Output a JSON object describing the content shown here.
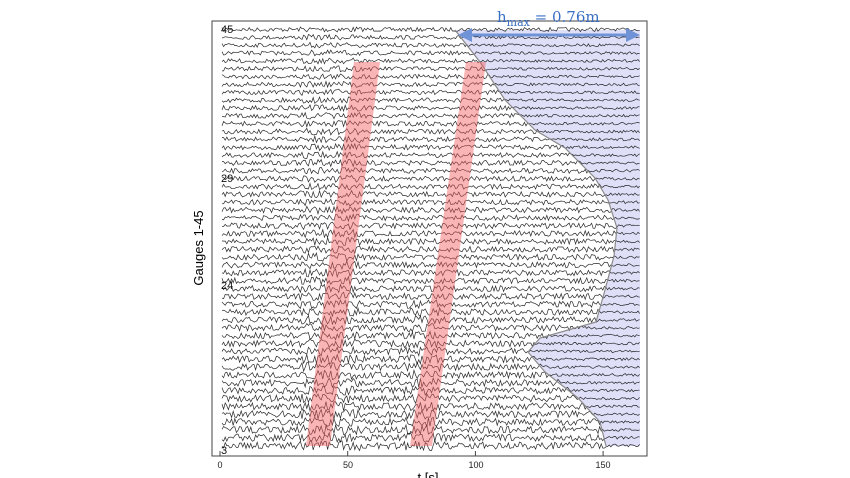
{
  "chart_data": {
    "type": "line",
    "xlabel": "t [s]",
    "ylabel": "Gauges 1-45",
    "xlim": [
      0,
      167
    ],
    "xticks": [
      "0",
      "50",
      "100",
      "150"
    ],
    "gauge_labels": [
      "45",
      "29",
      "24",
      "3"
    ],
    "annotation": {
      "text_base": "h",
      "text_sub": "max",
      "text_value": " = 0.76m"
    },
    "colors": {
      "trace": "#111111",
      "band": "#f25c5c",
      "envelope_fill": "#c9c9f3",
      "envelope_line": "#8a8a8a",
      "arrow": "#6f93d6"
    }
  }
}
